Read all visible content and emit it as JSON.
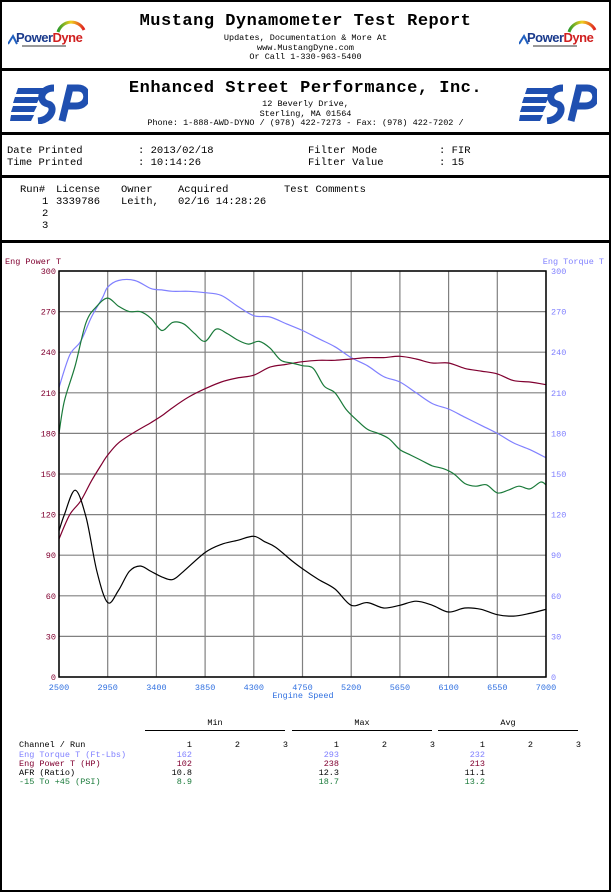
{
  "header": {
    "title": "Mustang Dynamometer Test Report",
    "sub1": "Updates, Documentation & More At",
    "sub2": "www.MustangDyne.com",
    "sub3": "Or Call 1-330-963-5400",
    "logo_left": {
      "power": "Power",
      "dyne": "Dyne",
      "icon": "powerdyne-logo-icon"
    },
    "logo_right": {
      "power": "Power",
      "dyne": "Dyne",
      "icon": "powerdyne-logo-icon"
    }
  },
  "shop": {
    "name": "Enhanced Street Performance, Inc.",
    "address1": "12 Beverly Drive,",
    "address2": "Sterling, MA  01564",
    "phone": "Phone: 1-888-AWD-DYNO / (978) 422-7273 - Fax: (978) 422-7202 /",
    "logo_icon": "esp-logo-icon"
  },
  "meta": {
    "date_label": "Date Printed",
    "date_value": ": 2013/02/18",
    "time_label": "Time Printed",
    "time_value": ": 10:14:26",
    "filter_mode_label": "Filter Mode",
    "filter_mode_value": ": FIR",
    "filter_value_label": "Filter Value",
    "filter_value_value": ": 15"
  },
  "runs": {
    "headers": [
      "Run#",
      "License",
      "Owner",
      "Acquired",
      "Test Comments"
    ],
    "rows": [
      {
        "run": "1",
        "license": "3339786",
        "owner": "Leith,",
        "acquired": "02/16 14:28:26",
        "comments": ""
      },
      {
        "run": "2",
        "license": "",
        "owner": "",
        "acquired": "",
        "comments": ""
      },
      {
        "run": "3",
        "license": "",
        "owner": "",
        "acquired": "",
        "comments": ""
      }
    ]
  },
  "colors": {
    "torque": "#8080ff",
    "power": "#800030",
    "afr": "#000000",
    "boost": "#1a7a3a",
    "xaxis": "#3070e0",
    "grid": "#808080"
  },
  "chart_data": {
    "type": "line",
    "title": "",
    "xlabel": "Engine Speed",
    "ylabel_left": "Eng Power T",
    "ylabel_right": "Eng Torque T",
    "xlim": [
      2500,
      7000
    ],
    "ylim": [
      0,
      300
    ],
    "x_ticks": [
      2500,
      2950,
      3400,
      3850,
      4300,
      4750,
      5200,
      5650,
      6100,
      6550,
      7000
    ],
    "y_ticks": [
      0,
      30,
      60,
      90,
      120,
      150,
      180,
      210,
      240,
      270,
      300
    ],
    "grid": true,
    "series": [
      {
        "name": "Eng Torque T (Ft-Lbs)",
        "color": "#8080ff",
        "x": [
          2500,
          2600,
          2700,
          2800,
          2900,
          2950,
          3050,
          3200,
          3350,
          3450,
          3550,
          3700,
          3850,
          4000,
          4150,
          4300,
          4450,
          4600,
          4750,
          4900,
          5050,
          5200,
          5350,
          5500,
          5650,
          5800,
          5950,
          6100,
          6250,
          6400,
          6550,
          6700,
          6850,
          7000
        ],
        "y": [
          214,
          238,
          248,
          266,
          280,
          288,
          293,
          293,
          287,
          286,
          285,
          285,
          284,
          282,
          274,
          267,
          266,
          261,
          256,
          250,
          244,
          236,
          230,
          222,
          218,
          210,
          202,
          198,
          192,
          186,
          180,
          173,
          168,
          162
        ]
      },
      {
        "name": "Eng Power T (HP)",
        "color": "#800030",
        "x": [
          2500,
          2600,
          2700,
          2800,
          2900,
          2950,
          3050,
          3200,
          3350,
          3450,
          3550,
          3700,
          3850,
          4000,
          4150,
          4300,
          4450,
          4600,
          4750,
          4900,
          5050,
          5200,
          5350,
          5500,
          5650,
          5800,
          5950,
          6100,
          6250,
          6400,
          6550,
          6700,
          6850,
          7000
        ],
        "y": [
          102,
          120,
          130,
          145,
          158,
          164,
          173,
          181,
          188,
          193,
          199,
          207,
          213,
          218,
          221,
          223,
          229,
          231,
          233,
          234,
          234,
          235,
          236,
          236,
          237,
          235,
          232,
          232,
          228,
          226,
          224,
          219,
          218,
          216
        ]
      },
      {
        "name": "AFR (Ratio)",
        "color": "#000000",
        "x": [
          2500,
          2550,
          2650,
          2750,
          2850,
          2950,
          3050,
          3150,
          3250,
          3350,
          3450,
          3550,
          3650,
          3850,
          4000,
          4150,
          4300,
          4400,
          4500,
          4650,
          4750,
          4900,
          5050,
          5200,
          5350,
          5500,
          5650,
          5800,
          5950,
          6100,
          6250,
          6400,
          6550,
          6700,
          6850,
          7000
        ],
        "y": [
          108,
          120,
          138,
          118,
          78,
          55,
          64,
          78,
          82,
          78,
          74,
          72,
          78,
          92,
          98,
          101,
          104,
          100,
          96,
          86,
          80,
          72,
          65,
          53,
          55,
          51,
          53,
          56,
          53,
          48,
          51,
          50,
          46,
          45,
          47,
          50
        ]
      },
      {
        "name": "-15 To +45 (PSI)",
        "color": "#1a7a3a",
        "x": [
          2500,
          2550,
          2650,
          2750,
          2850,
          2950,
          3050,
          3150,
          3250,
          3350,
          3450,
          3550,
          3650,
          3750,
          3850,
          3950,
          4050,
          4150,
          4250,
          4350,
          4450,
          4550,
          4650,
          4750,
          4850,
          4950,
          5050,
          5150,
          5250,
          5350,
          5450,
          5550,
          5650,
          5750,
          5850,
          5950,
          6050,
          6150,
          6250,
          6350,
          6450,
          6550,
          6650,
          6750,
          6850,
          6950,
          7000
        ],
        "y": [
          180,
          204,
          230,
          262,
          274,
          280,
          274,
          270,
          270,
          265,
          256,
          262,
          261,
          254,
          248,
          257,
          254,
          249,
          246,
          248,
          243,
          234,
          232,
          230,
          228,
          215,
          210,
          198,
          190,
          183,
          180,
          176,
          168,
          164,
          160,
          156,
          154,
          150,
          143,
          141,
          142,
          136,
          138,
          141,
          139,
          144,
          142
        ]
      }
    ],
    "stats": {
      "columns": [
        "Min",
        "Max",
        "Avg"
      ],
      "runs": [
        "1",
        "2",
        "3"
      ],
      "row_header": "Channel / Run",
      "rows": [
        {
          "channel": "Eng Torque T (Ft-Lbs)",
          "color": "#8080ff",
          "min": "162",
          "max": "293",
          "avg": "232"
        },
        {
          "channel": "Eng Power T (HP)",
          "color": "#800030",
          "min": "102",
          "max": "238",
          "avg": "213"
        },
        {
          "channel": "AFR (Ratio)",
          "color": "#000000",
          "min": "10.8",
          "max": "12.3",
          "avg": "11.1"
        },
        {
          "channel": "-15 To +45 (PSI)",
          "color": "#1a7a3a",
          "min": "8.9",
          "max": "18.7",
          "avg": "13.2"
        }
      ]
    }
  }
}
